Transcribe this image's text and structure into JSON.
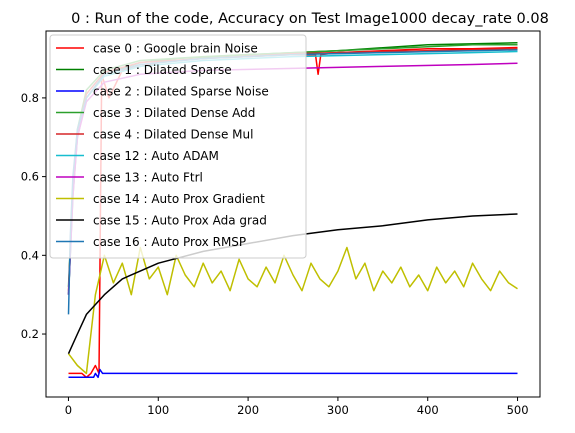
{
  "chart_data": {
    "type": "line",
    "title": "0 : Run of the code, Accuracy on Test Image1000 decay_rate 0.08",
    "xlabel": "",
    "ylabel": "",
    "xlim": [
      -25,
      525
    ],
    "ylim": [
      0.04,
      0.97
    ],
    "xticks": [
      0,
      100,
      200,
      300,
      400,
      500
    ],
    "xtick_labels": [
      "0",
      "100",
      "200",
      "300",
      "400",
      "500"
    ],
    "yticks": [
      0.2,
      0.4,
      0.6,
      0.8
    ],
    "ytick_labels": [
      "0.2",
      "0.4",
      "0.6",
      "0.8"
    ],
    "legend_position": "upper-left",
    "grid": false,
    "series": [
      {
        "name": "case 0 : Google brain Noise",
        "color": "#ff0000",
        "points": [
          [
            0,
            0.1
          ],
          [
            10,
            0.1
          ],
          [
            15,
            0.1
          ],
          [
            20,
            0.09
          ],
          [
            25,
            0.1
          ],
          [
            30,
            0.12
          ],
          [
            34,
            0.1
          ],
          [
            37,
            0.86
          ],
          [
            45,
            0.8
          ],
          [
            60,
            0.87
          ],
          [
            80,
            0.88
          ],
          [
            100,
            0.89
          ],
          [
            150,
            0.9
          ],
          [
            200,
            0.905
          ],
          [
            250,
            0.91
          ],
          [
            275,
            0.91
          ],
          [
            278,
            0.86
          ],
          [
            281,
            0.91
          ],
          [
            300,
            0.915
          ],
          [
            350,
            0.92
          ],
          [
            400,
            0.925
          ],
          [
            450,
            0.925
          ],
          [
            500,
            0.928
          ]
        ]
      },
      {
        "name": "case 1 : Dilated Sparse",
        "color": "#008000",
        "points": [
          [
            0,
            0.3
          ],
          [
            5,
            0.55
          ],
          [
            10,
            0.7
          ],
          [
            20,
            0.8
          ],
          [
            40,
            0.86
          ],
          [
            80,
            0.89
          ],
          [
            120,
            0.9
          ],
          [
            200,
            0.91
          ],
          [
            300,
            0.92
          ],
          [
            400,
            0.935
          ],
          [
            500,
            0.94
          ]
        ]
      },
      {
        "name": "case 2 : Dilated Sparse Noise",
        "color": "#0000ff",
        "points": [
          [
            0,
            0.09
          ],
          [
            28,
            0.09
          ],
          [
            30,
            0.1
          ],
          [
            33,
            0.09
          ],
          [
            35,
            0.11
          ],
          [
            38,
            0.1
          ],
          [
            500,
            0.1
          ]
        ]
      },
      {
        "name": "case 3 : Dilated Dense Add",
        "color": "#2ca02c",
        "points": [
          [
            0,
            0.32
          ],
          [
            5,
            0.58
          ],
          [
            10,
            0.72
          ],
          [
            20,
            0.82
          ],
          [
            40,
            0.87
          ],
          [
            80,
            0.895
          ],
          [
            150,
            0.905
          ],
          [
            250,
            0.915
          ],
          [
            350,
            0.925
          ],
          [
            450,
            0.935
          ],
          [
            500,
            0.935
          ]
        ]
      },
      {
        "name": "case 4 : Dilated Dense Mul",
        "color": "#d62728",
        "points": [
          [
            0,
            0.31
          ],
          [
            5,
            0.57
          ],
          [
            10,
            0.71
          ],
          [
            20,
            0.81
          ],
          [
            40,
            0.865
          ],
          [
            80,
            0.89
          ],
          [
            150,
            0.9
          ],
          [
            250,
            0.912
          ],
          [
            350,
            0.918
          ],
          [
            450,
            0.922
          ],
          [
            500,
            0.925
          ]
        ]
      },
      {
        "name": "case 12 : Auto ADAM",
        "color": "#17becf",
        "points": [
          [
            0,
            0.3
          ],
          [
            5,
            0.56
          ],
          [
            10,
            0.7
          ],
          [
            20,
            0.8
          ],
          [
            40,
            0.855
          ],
          [
            80,
            0.88
          ],
          [
            150,
            0.895
          ],
          [
            250,
            0.905
          ],
          [
            350,
            0.91
          ],
          [
            450,
            0.915
          ],
          [
            500,
            0.918
          ]
        ]
      },
      {
        "name": "case 13 : Auto Ftrl",
        "color": "#bf00bf",
        "points": [
          [
            0,
            0.3
          ],
          [
            5,
            0.55
          ],
          [
            10,
            0.7
          ],
          [
            20,
            0.79
          ],
          [
            40,
            0.84
          ],
          [
            80,
            0.86
          ],
          [
            150,
            0.87
          ],
          [
            250,
            0.875
          ],
          [
            350,
            0.88
          ],
          [
            450,
            0.885
          ],
          [
            500,
            0.888
          ]
        ]
      },
      {
        "name": "case 14 : Auto Prox Gradient",
        "color": "#bfbf00",
        "points": [
          [
            0,
            0.15
          ],
          [
            10,
            0.12
          ],
          [
            20,
            0.1
          ],
          [
            30,
            0.3
          ],
          [
            40,
            0.4
          ],
          [
            50,
            0.33
          ],
          [
            60,
            0.38
          ],
          [
            70,
            0.3
          ],
          [
            80,
            0.42
          ],
          [
            90,
            0.34
          ],
          [
            100,
            0.37
          ],
          [
            110,
            0.3
          ],
          [
            120,
            0.4
          ],
          [
            130,
            0.35
          ],
          [
            140,
            0.32
          ],
          [
            150,
            0.38
          ],
          [
            160,
            0.33
          ],
          [
            170,
            0.36
          ],
          [
            180,
            0.31
          ],
          [
            190,
            0.39
          ],
          [
            200,
            0.34
          ],
          [
            210,
            0.32
          ],
          [
            220,
            0.37
          ],
          [
            230,
            0.33
          ],
          [
            240,
            0.4
          ],
          [
            250,
            0.35
          ],
          [
            260,
            0.31
          ],
          [
            270,
            0.38
          ],
          [
            280,
            0.34
          ],
          [
            290,
            0.32
          ],
          [
            300,
            0.36
          ],
          [
            310,
            0.42
          ],
          [
            320,
            0.34
          ],
          [
            330,
            0.38
          ],
          [
            340,
            0.31
          ],
          [
            350,
            0.36
          ],
          [
            360,
            0.33
          ],
          [
            370,
            0.37
          ],
          [
            380,
            0.32
          ],
          [
            390,
            0.35
          ],
          [
            400,
            0.31
          ],
          [
            410,
            0.37
          ],
          [
            420,
            0.33
          ],
          [
            430,
            0.36
          ],
          [
            440,
            0.32
          ],
          [
            450,
            0.38
          ],
          [
            460,
            0.34
          ],
          [
            470,
            0.31
          ],
          [
            480,
            0.36
          ],
          [
            490,
            0.33
          ],
          [
            500,
            0.315
          ]
        ]
      },
      {
        "name": "case 15 : Auto Prox Ada grad",
        "color": "#000000",
        "points": [
          [
            0,
            0.15
          ],
          [
            10,
            0.2
          ],
          [
            20,
            0.25
          ],
          [
            40,
            0.3
          ],
          [
            60,
            0.34
          ],
          [
            100,
            0.38
          ],
          [
            150,
            0.41
          ],
          [
            200,
            0.43
          ],
          [
            250,
            0.45
          ],
          [
            300,
            0.465
          ],
          [
            350,
            0.475
          ],
          [
            400,
            0.49
          ],
          [
            450,
            0.5
          ],
          [
            500,
            0.505
          ]
        ]
      },
      {
        "name": "case 16 : Auto Prox RMSP",
        "color": "#1f77b4",
        "points": [
          [
            0,
            0.25
          ],
          [
            2,
            0.45
          ],
          [
            5,
            0.6
          ],
          [
            10,
            0.72
          ],
          [
            20,
            0.8
          ],
          [
            40,
            0.86
          ],
          [
            80,
            0.885
          ],
          [
            150,
            0.9
          ],
          [
            250,
            0.91
          ],
          [
            350,
            0.915
          ],
          [
            450,
            0.92
          ],
          [
            500,
            0.922
          ]
        ]
      }
    ]
  }
}
